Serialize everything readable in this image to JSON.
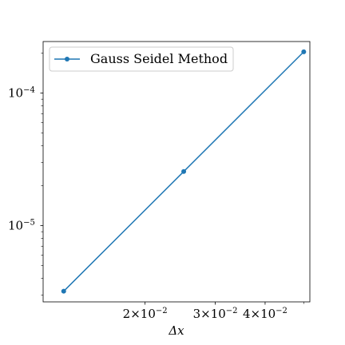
{
  "chart_data": {
    "type": "line",
    "title": "",
    "xlabel": "Δx",
    "ylabel": "",
    "xscale": "log",
    "yscale": "log",
    "xlim": [
      0.0111,
      0.0518
    ],
    "ylim": [
      2.66e-06,
      0.000245
    ],
    "grid": false,
    "legend_position": "top-left",
    "series": [
      {
        "name": "Gauss Seidel Method",
        "color": "#1f77b4",
        "marker": "circle",
        "x": [
          0.0125,
          0.025,
          0.05
        ],
        "y": [
          3.2e-06,
          2.56e-05,
          0.000205
        ]
      }
    ],
    "x_ticks": [
      {
        "value": 0.02,
        "mantissa": "2",
        "exponent": "−2"
      },
      {
        "value": 0.03,
        "mantissa": "3",
        "exponent": "−2"
      },
      {
        "value": 0.04,
        "mantissa": "4",
        "exponent": "−2"
      }
    ],
    "y_ticks": [
      {
        "value": 1e-05,
        "base": "10",
        "exponent": "−5"
      },
      {
        "value": 0.0001,
        "base": "10",
        "exponent": "−4"
      }
    ]
  }
}
